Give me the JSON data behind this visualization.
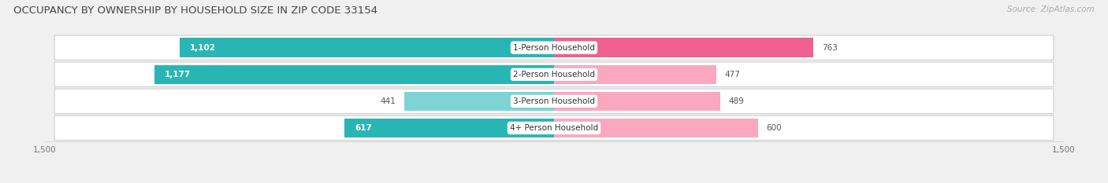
{
  "title": "OCCUPANCY BY OWNERSHIP BY HOUSEHOLD SIZE IN ZIP CODE 33154",
  "source": "Source: ZipAtlas.com",
  "categories": [
    "1-Person Household",
    "2-Person Household",
    "3-Person Household",
    "4+ Person Household"
  ],
  "owner_values": [
    1102,
    1177,
    441,
    617
  ],
  "renter_values": [
    763,
    477,
    489,
    600
  ],
  "owner_color_dark": "#2ab5b5",
  "owner_color_light": "#7dd4d4",
  "renter_color_dark": "#f06090",
  "renter_color_light": "#f9a8c0",
  "xlim": 1500,
  "bg_color": "#f0f0f0",
  "row_bg_color": "#ffffff",
  "row_border_color": "#d0d0d0",
  "title_fontsize": 9.5,
  "label_fontsize": 7.5,
  "value_fontsize": 7.5,
  "tick_fontsize": 7.5,
  "source_fontsize": 7.5,
  "legend_fontsize": 7.5
}
